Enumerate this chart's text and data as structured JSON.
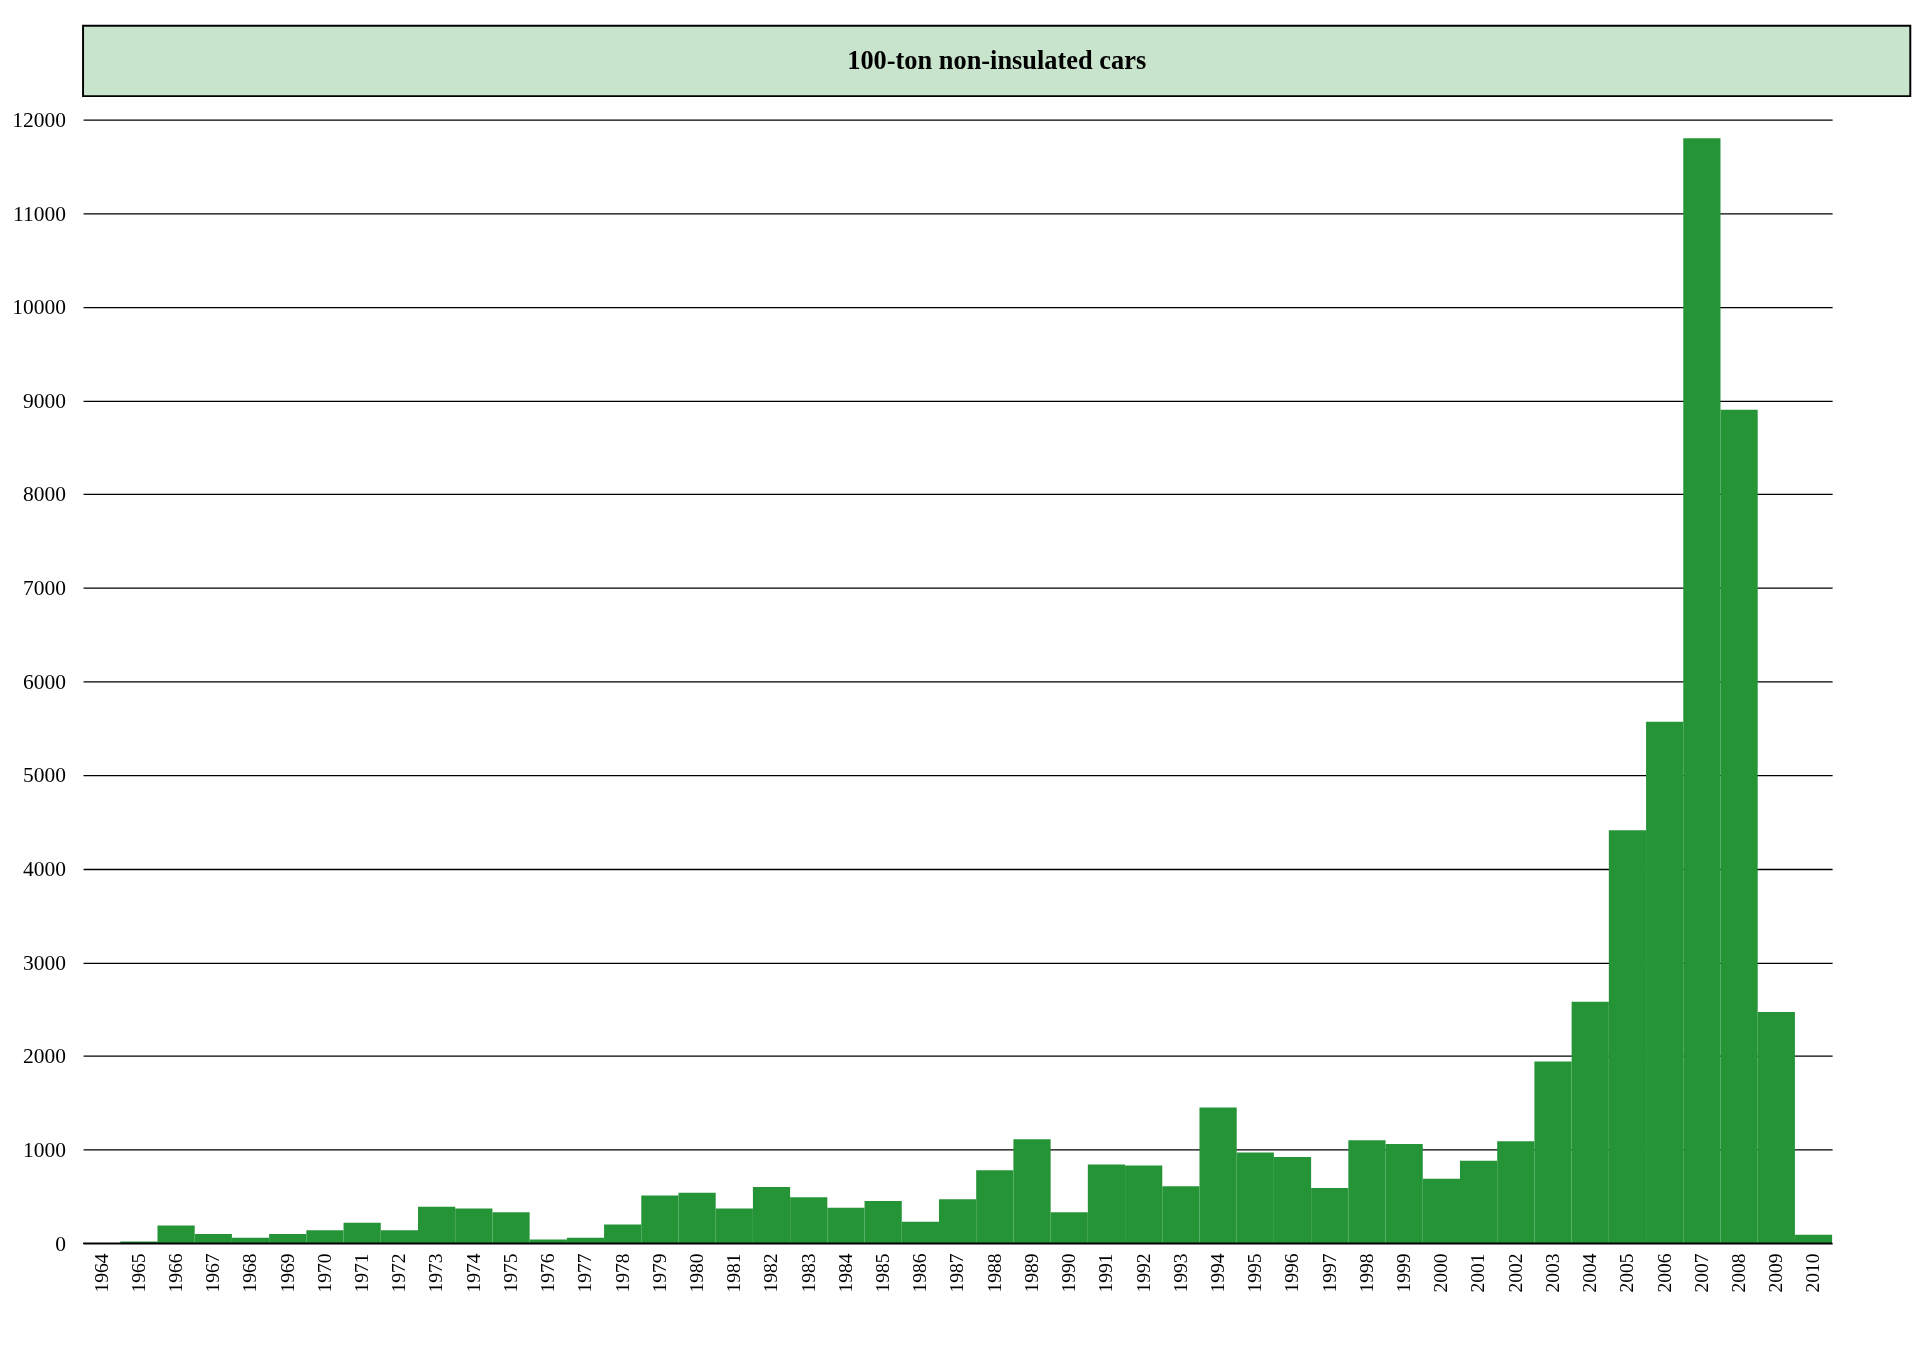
{
  "chart_data": {
    "type": "bar",
    "title": "100-ton non-insulated cars",
    "categories": [
      "1964",
      "1965",
      "1966",
      "1967",
      "1968",
      "1969",
      "1970",
      "1971",
      "1972",
      "1973",
      "1974",
      "1975",
      "1976",
      "1977",
      "1978",
      "1979",
      "1980",
      "1981",
      "1982",
      "1983",
      "1984",
      "1985",
      "1986",
      "1987",
      "1988",
      "1989",
      "1990",
      "1991",
      "1992",
      "1993",
      "1994",
      "1995",
      "1996",
      "1997",
      "1998",
      "1999",
      "2000",
      "2001",
      "2002",
      "2003",
      "2004",
      "2005",
      "2006",
      "2007",
      "2008",
      "2009",
      "2010"
    ],
    "values": [
      0,
      20,
      190,
      100,
      60,
      100,
      140,
      220,
      140,
      390,
      370,
      330,
      40,
      60,
      200,
      510,
      540,
      370,
      600,
      490,
      380,
      450,
      230,
      470,
      780,
      1110,
      330,
      840,
      830,
      610,
      1450,
      970,
      920,
      590,
      1100,
      1060,
      690,
      880,
      1090,
      1940,
      2580,
      4410,
      5570,
      11800,
      8900,
      2470,
      90
    ],
    "color": "#249436",
    "ylim": [
      0,
      12000
    ],
    "yticks": [
      0,
      1000,
      2000,
      3000,
      4000,
      5000,
      6000,
      7000,
      8000,
      9000,
      10000,
      11000,
      12000
    ],
    "grid": "y"
  }
}
